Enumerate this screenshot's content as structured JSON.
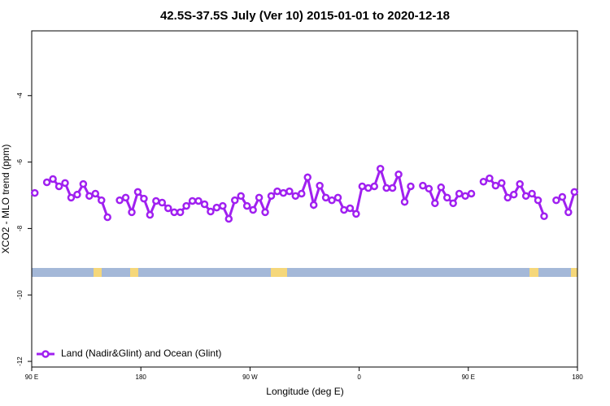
{
  "chart_data": {
    "type": "line",
    "title": "42.5S-37.5S July (Ver 10)   2015-01-01 to 2020-12-18",
    "x_label": "Longitude (deg E)",
    "y_label": "XCO2 - MLO trend (ppm)",
    "xlim": [
      90,
      540
    ],
    "ylim": [
      -12.17,
      -2.05
    ],
    "xticks": [
      {
        "value": 90,
        "label": "90 E"
      },
      180,
      {
        "value": 270,
        "label": "90 W"
      },
      {
        "value": 360,
        "label": "0"
      },
      {
        "value": 450,
        "label": "90 E"
      },
      {
        "value": 540,
        "label": "180"
      }
    ],
    "yticks": [
      -4,
      -6,
      -8,
      -10,
      -12
    ],
    "legend": "bottom-left",
    "x": [
      92.5,
      97.5,
      102.5,
      107.5,
      112.5,
      117.5,
      122.5,
      127.5,
      132.5,
      137.5,
      142.5,
      147.5,
      152.5,
      157.5,
      162.5,
      167.5,
      172.5,
      177.5,
      182.5,
      187.5,
      192.5,
      197.5,
      202.5,
      207.5,
      212.5,
      217.5,
      222.5,
      227.5,
      232.5,
      237.5,
      242.5,
      247.5,
      252.5,
      257.5,
      262.5,
      267.5,
      272.5,
      277.5,
      282.5,
      287.5,
      292.5,
      297.5,
      302.5,
      307.5,
      312.5,
      317.5,
      322.5,
      327.5,
      332.5,
      337.5,
      342.5,
      347.5,
      352.5,
      357.5,
      362.5,
      367.5,
      372.5,
      377.5,
      382.5,
      387.5,
      392.5,
      397.5,
      402.5,
      407.5,
      412.5,
      417.5,
      422.5,
      427.5,
      432.5,
      437.5,
      442.5,
      447.5,
      452.5,
      457.5,
      462.5,
      467.5,
      472.5,
      477.5,
      482.5,
      487.5,
      492.5,
      497.5,
      502.5,
      507.5,
      512.5,
      517.5,
      522.5,
      527.5,
      532.5,
      537.5
    ],
    "series": [
      {
        "name": "Land (Nadir&Glint) and Ocean (Glint)",
        "color": "#a020f0",
        "values": [
          -6.93,
          null,
          -6.61,
          -6.51,
          -6.73,
          -6.63,
          -7.07,
          -6.98,
          -6.66,
          -7.02,
          -6.95,
          -7.15,
          -7.66,
          null,
          -7.15,
          -7.07,
          -7.51,
          -6.9,
          -7.1,
          -7.59,
          -7.17,
          -7.22,
          -7.39,
          -7.51,
          -7.51,
          -7.32,
          -7.17,
          -7.17,
          -7.27,
          -7.49,
          -7.37,
          -7.32,
          -7.71,
          -7.15,
          -7.02,
          -7.32,
          -7.44,
          -7.07,
          -7.51,
          -7.02,
          -6.88,
          -6.93,
          -6.88,
          -7.02,
          -6.95,
          -6.46,
          -7.29,
          -6.71,
          -7.07,
          -7.15,
          -7.07,
          -7.44,
          -7.39,
          -7.56,
          -6.73,
          -6.78,
          -6.73,
          -6.2,
          -6.78,
          -6.78,
          -6.37,
          -7.2,
          -6.73,
          null,
          -6.71,
          -6.8,
          -7.24,
          -6.76,
          -7.07,
          -7.24,
          -6.95,
          -7.02,
          -6.95,
          null,
          -6.59,
          -6.49,
          -6.71,
          -6.63,
          -7.07,
          -6.98,
          -6.66,
          -7.02,
          -6.95,
          -7.15,
          -7.63,
          null,
          -7.15,
          -7.05,
          -7.51,
          -6.9
        ]
      }
    ]
  }
}
